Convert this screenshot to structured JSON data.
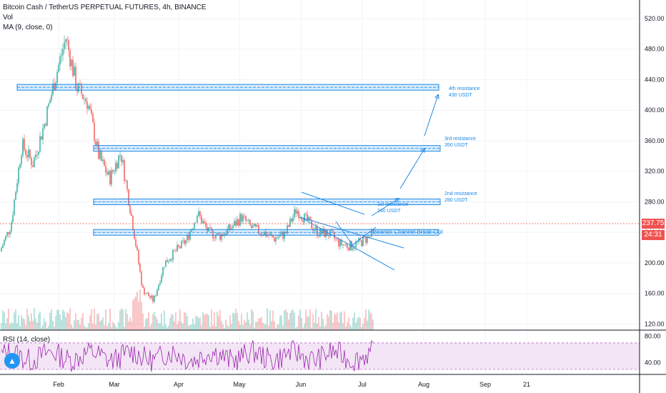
{
  "legend": {
    "title": "Bitcoin Cash / TetherUS PERPETUAL FUTURES, 4h, BINANCE",
    "vol": "Vol",
    "ma": "MA (9, close, 0)"
  },
  "rsi_label": "RSI (14, close)",
  "last_price": "237.75",
  "countdown": "24:31",
  "colors": {
    "up": "#26a69a",
    "down": "#ef5350",
    "line": "#1e88e5",
    "rsi": "#9c27b0",
    "rsi_band": "#f3e5f5"
  },
  "chart_data": {
    "type": "candlestick",
    "x_ticks": [
      "Feb",
      "Mar",
      "Apr",
      "May",
      "Jun",
      "Jul",
      "Aug",
      "Sep",
      "21"
    ],
    "y_ticks": [
      "520.00",
      "480.00",
      "440.00",
      "400.00",
      "360.00",
      "320.00",
      "280.00",
      "240.00",
      "200.00",
      "160.00",
      "120.00"
    ],
    "rsi_ticks": [
      "80.00",
      "40.00"
    ],
    "ylim": [
      96,
      530
    ],
    "price_path": [
      [
        "Jan 1",
        215
      ],
      [
        "Jan 8",
        250
      ],
      [
        "Jan 15",
        355
      ],
      [
        "Jan 22",
        330
      ],
      [
        "Feb 1",
        380
      ],
      [
        "Feb 8",
        440
      ],
      [
        "Feb 14",
        495
      ],
      [
        "Feb 18",
        430
      ],
      [
        "Feb 22",
        410
      ],
      [
        "Feb 28",
        340
      ],
      [
        "Mar 4",
        310
      ],
      [
        "Mar 8",
        345
      ],
      [
        "Mar 12",
        260
      ],
      [
        "Mar 13",
        165
      ],
      [
        "Mar 16",
        150
      ],
      [
        "Mar 20",
        200
      ],
      [
        "Mar 25",
        215
      ],
      [
        "Apr 1",
        230
      ],
      [
        "Apr 7",
        265
      ],
      [
        "Apr 12",
        240
      ],
      [
        "Apr 20",
        235
      ],
      [
        "Apr 28",
        245
      ],
      [
        "May 3",
        260
      ],
      [
        "May 10",
        245
      ],
      [
        "May 15",
        240
      ],
      [
        "May 22",
        232
      ],
      [
        "May 28",
        238
      ],
      [
        "Jun 2",
        270
      ],
      [
        "Jun 8",
        255
      ],
      [
        "Jun 14",
        240
      ],
      [
        "Jun 20",
        238
      ],
      [
        "Jun 26",
        225
      ],
      [
        "Jul 2",
        222
      ],
      [
        "Jul 6",
        228
      ],
      [
        "Jul 9",
        237.75
      ]
    ],
    "levels": [
      {
        "name": "4th resistance",
        "value": 430
      },
      {
        "name": "3rd resistance",
        "value": 350
      },
      {
        "name": "2nd resistance",
        "value": 280
      },
      {
        "name": "1st resistance",
        "value": 240
      }
    ],
    "annotations": [
      {
        "text": "4th resistance\n430 USDT",
        "price": 430
      },
      {
        "text": "3rd resistance\n350 USDT",
        "price": 350
      },
      {
        "text": "2nd resistance\n280 USDT",
        "price": 280
      },
      {
        "text": "1st resistance\n240 USDT",
        "price": 240
      },
      {
        "text": "Bearish Channel Break-Out",
        "price": 232
      }
    ]
  }
}
